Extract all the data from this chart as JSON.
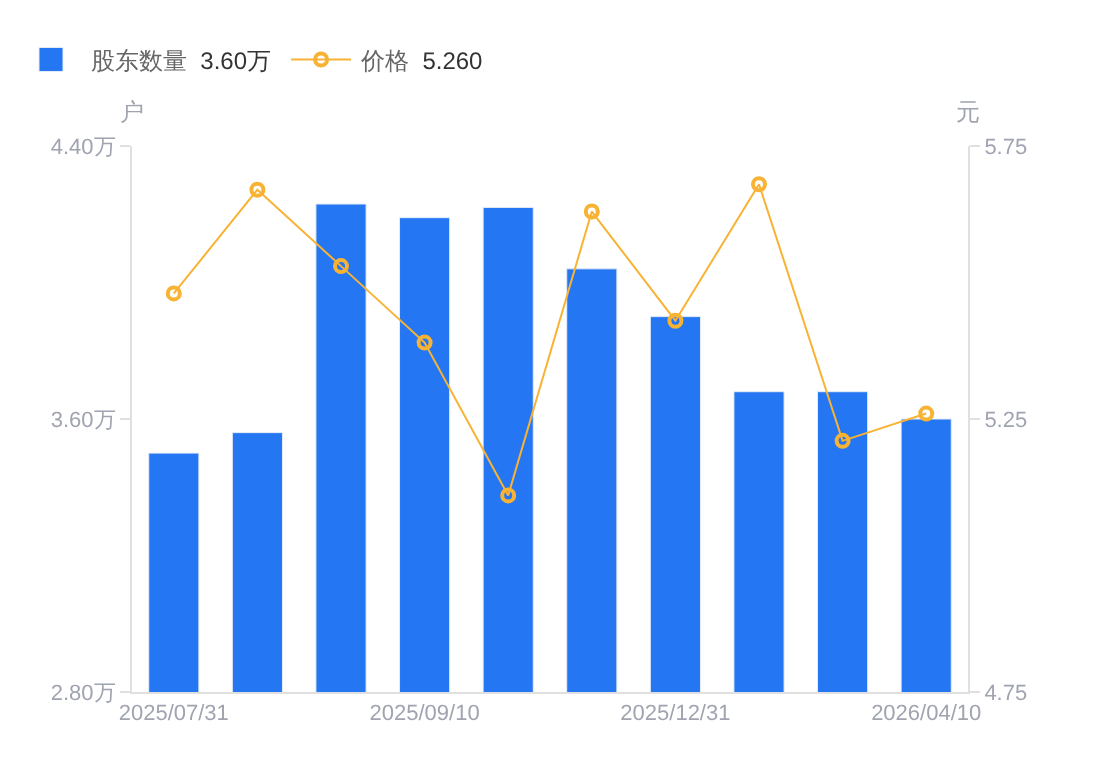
{
  "chart_data": {
    "type": "bar",
    "categories": [
      "2025/07/31",
      null,
      null,
      "2025/09/10",
      null,
      null,
      "2025/12/31",
      null,
      null,
      "2026/04/10"
    ],
    "series": [
      {
        "name": "股东数量",
        "color": "#2576f2",
        "values": [
          3.5,
          3.56,
          4.23,
          4.19,
          4.22,
          4.04,
          3.9,
          3.68,
          3.68,
          3.6
        ]
      },
      {
        "name": "价格",
        "type": "line",
        "axis": "y2",
        "color": "#f8b334",
        "marker": "circle",
        "values": [
          5.48,
          5.67,
          5.53,
          5.39,
          5.11,
          5.63,
          5.43,
          5.68,
          5.21,
          5.26
        ]
      }
    ],
    "annotations": [
      "3.60万",
      "5.260"
    ],
    "ylabel": "户",
    "y2label": "元",
    "ylim": [
      2.8,
      4.4
    ],
    "yticks": [
      {
        "value": 2.8,
        "label": "2.80万"
      },
      {
        "value": 3.6,
        "label": "3.60万"
      },
      {
        "value": 4.4,
        "label": "4.40万"
      }
    ],
    "y2lim": [
      4.75,
      5.75
    ],
    "y2ticks": [
      4.75,
      5.25,
      5.75
    ],
    "legend": "top left"
  }
}
